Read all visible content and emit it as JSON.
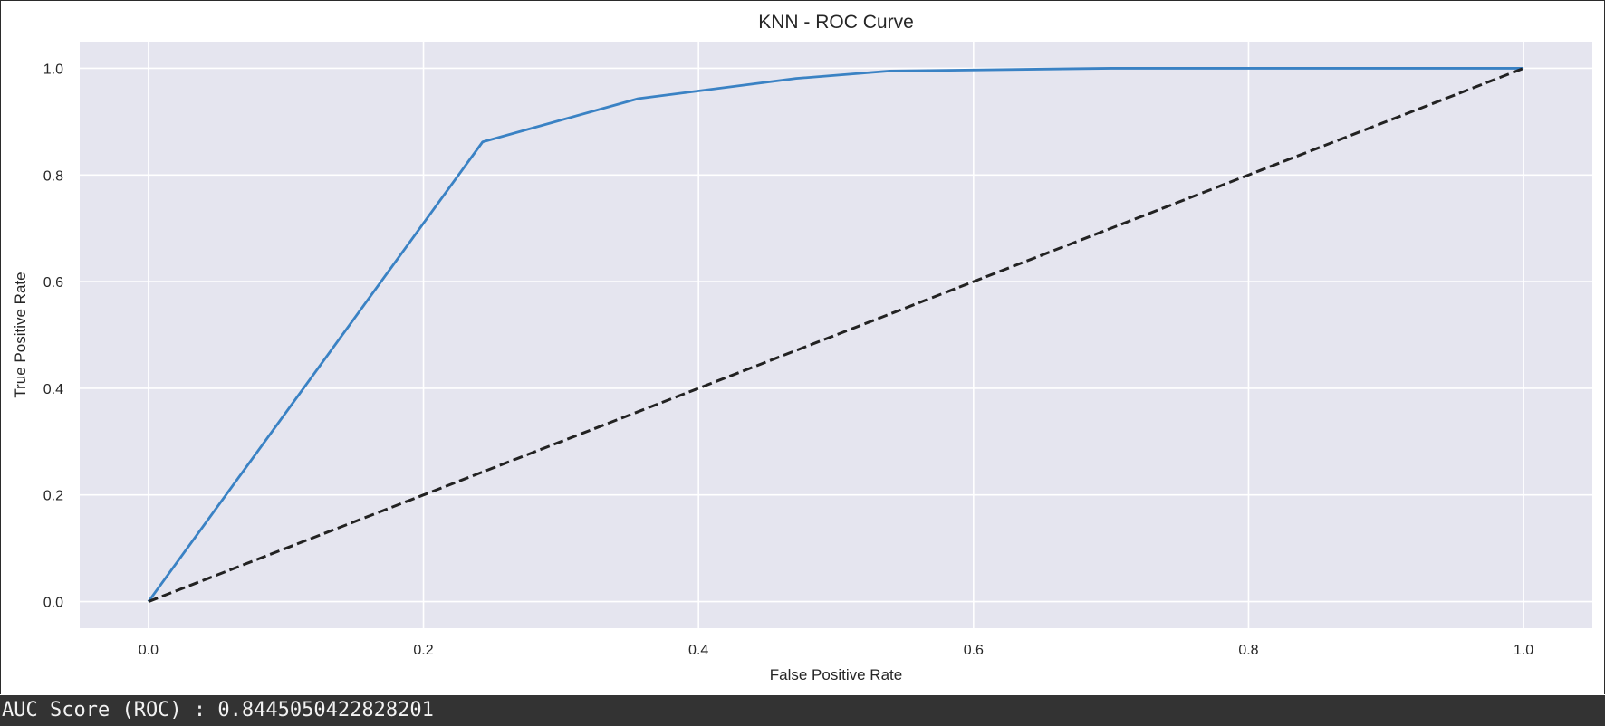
{
  "chart_data": {
    "type": "line",
    "title": "KNN - ROC Curve",
    "xlabel": "False Positive Rate",
    "ylabel": "True Positive Rate",
    "xlim": [
      -0.05,
      1.05
    ],
    "ylim": [
      -0.05,
      1.05
    ],
    "xticks": [
      "0.0",
      "0.2",
      "0.4",
      "0.6",
      "0.8",
      "1.0"
    ],
    "yticks": [
      "0.0",
      "0.2",
      "0.4",
      "0.6",
      "0.8",
      "1.0"
    ],
    "grid": true,
    "style": "seaborn-darkgrid",
    "series": [
      {
        "x": [
          0.0,
          0.243,
          0.356,
          0.471,
          0.539,
          0.7,
          1.0
        ],
        "y": [
          0.0,
          0.862,
          0.943,
          0.981,
          0.995,
          1.0,
          1.0
        ],
        "color": "#3a82c4",
        "linestyle": "solid"
      },
      {
        "x": [
          0.0,
          1.0
        ],
        "y": [
          0.0,
          1.0
        ],
        "color": "#222222",
        "linestyle": "dashed"
      }
    ]
  },
  "output": {
    "text": "AUC Score (ROC) : 0.8445050422828201"
  },
  "colors": {
    "plot_background": "#e5e5ef",
    "grid": "#ffffff",
    "output_background": "#333333"
  }
}
